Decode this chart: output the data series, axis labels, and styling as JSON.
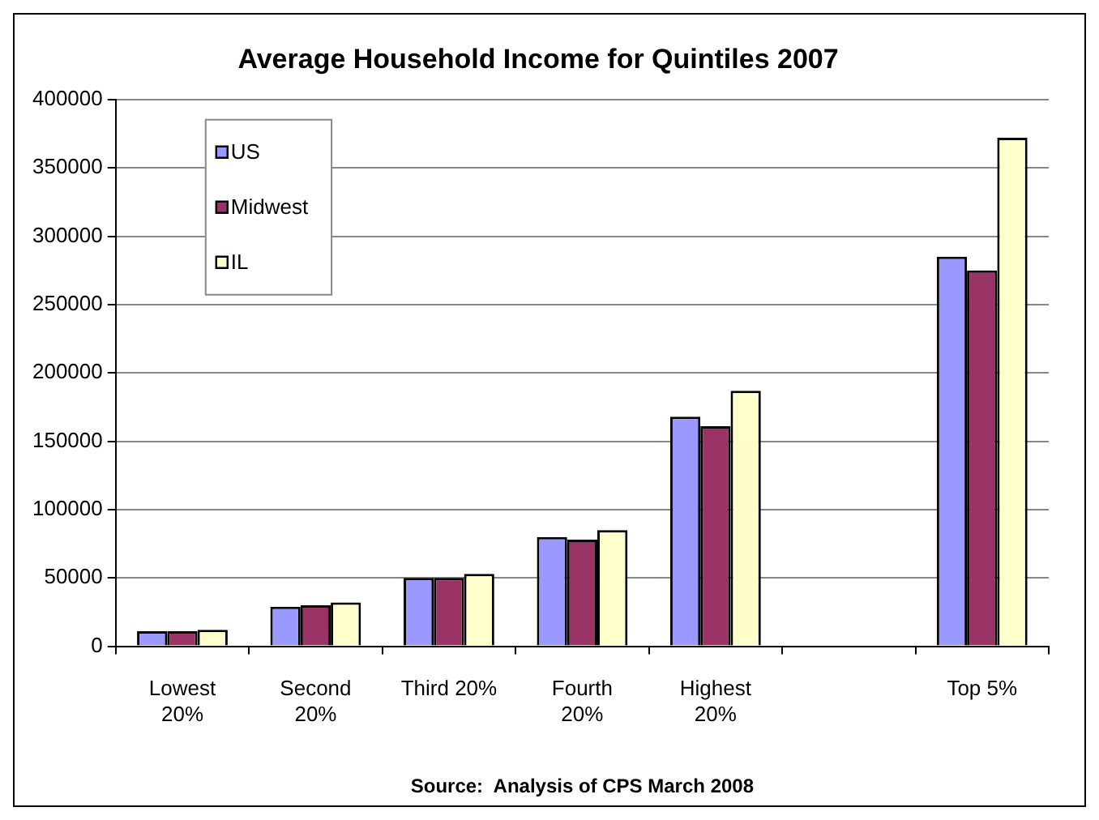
{
  "chart_data": {
    "type": "bar",
    "title": "Average Household Income for Quintiles 2007",
    "categories": [
      "Lowest 20%",
      "Second 20%",
      "Third 20%",
      "Fourth 20%",
      "Highest 20%",
      null,
      "Top 5%"
    ],
    "series": [
      {
        "name": "US",
        "color": "#9999ff",
        "values": [
          11000,
          29000,
          50000,
          80000,
          168000,
          null,
          285000
        ]
      },
      {
        "name": "Midwest",
        "color": "#993366",
        "values": [
          11000,
          30000,
          50000,
          78000,
          161000,
          null,
          275000
        ]
      },
      {
        "name": "IL",
        "color": "#ffffcc",
        "values": [
          12000,
          32000,
          53000,
          85000,
          187000,
          null,
          372000
        ]
      }
    ],
    "ylim": [
      0,
      400000
    ],
    "yticks": [
      0,
      50000,
      100000,
      150000,
      200000,
      250000,
      300000,
      350000,
      400000
    ],
    "grid": "y",
    "legend": "top left",
    "annotations": [
      "Source:  Analysis of CPS March 2008"
    ]
  }
}
